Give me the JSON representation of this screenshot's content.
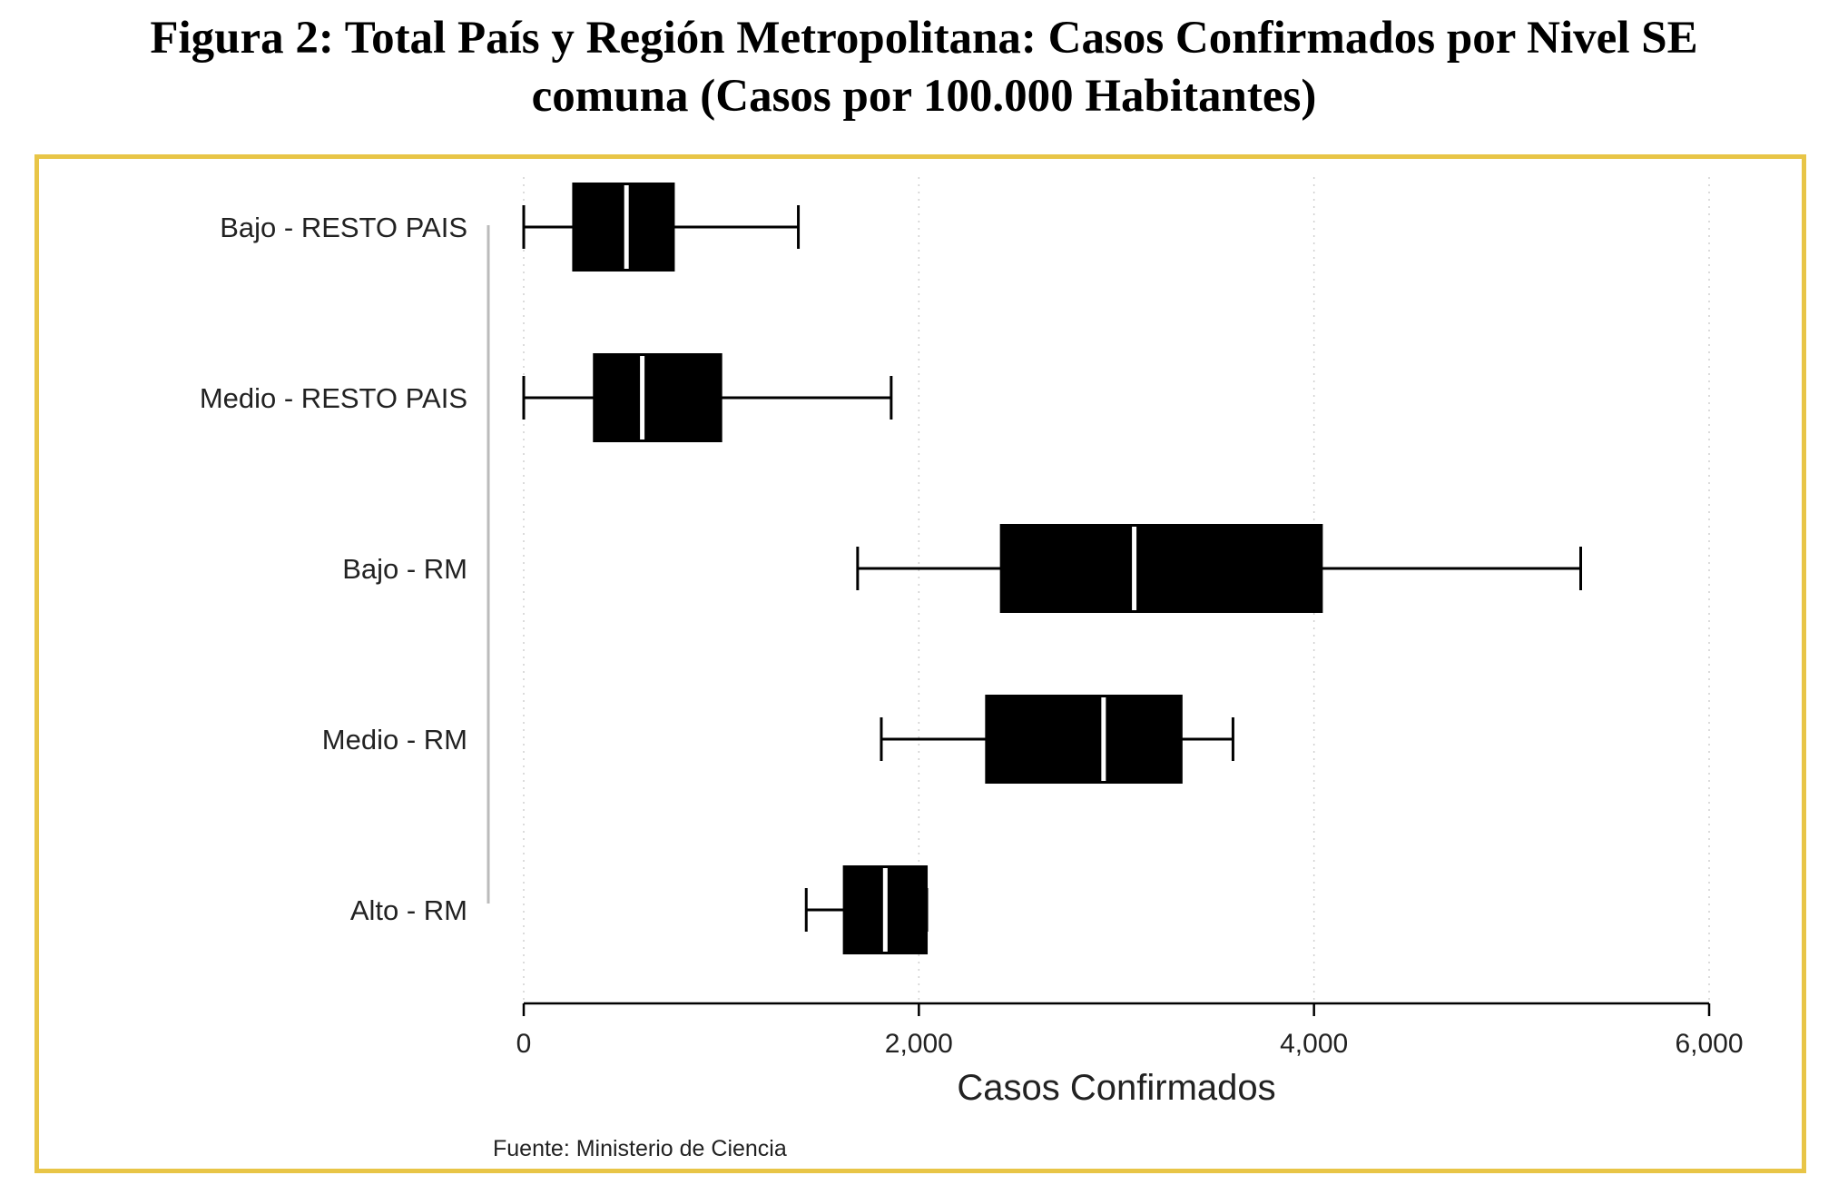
{
  "title_lines": [
    "Figura 2: Total País y Región Metropolitana: Casos Confirmados por Nivel SE",
    "comuna (Casos por 100.000 Habitantes)"
  ],
  "frame_color": "#e8c547",
  "source_note": "Fuente:  Ministerio de Ciencia",
  "chart_data": {
    "type": "box",
    "orientation": "horizontal",
    "xlabel": "Casos Confirmados",
    "xlim": [
      0,
      6000
    ],
    "xticks": [
      0,
      2000,
      4000,
      6000
    ],
    "xtick_labels": [
      "0",
      "2,000",
      "4,000",
      "6,000"
    ],
    "grid": "vertical dotted",
    "box_color": "#000000",
    "median_color": "#ffffff",
    "categories": [
      "Bajo - RESTO PAIS",
      "Medio - RESTO PAIS",
      "Bajo - RM",
      "Medio - RM",
      "Alto - RM"
    ],
    "boxes": [
      {
        "label": "Bajo - RESTO PAIS",
        "whisker_low": 0,
        "q1": 250,
        "median": 520,
        "q3": 760,
        "whisker_high": 1390
      },
      {
        "label": "Medio - RESTO PAIS",
        "whisker_low": 0,
        "q1": 355,
        "median": 600,
        "q3": 1000,
        "whisker_high": 1860
      },
      {
        "label": "Bajo - RM",
        "whisker_low": 1690,
        "q1": 2415,
        "median": 3090,
        "q3": 4040,
        "whisker_high": 5350
      },
      {
        "label": "Medio - RM",
        "whisker_low": 1810,
        "q1": 2340,
        "median": 2935,
        "q3": 3330,
        "whisker_high": 3590
      },
      {
        "label": "Alto - RM",
        "whisker_low": 1430,
        "q1": 1620,
        "median": 1830,
        "q3": 2040,
        "whisker_high": 2040
      }
    ]
  }
}
